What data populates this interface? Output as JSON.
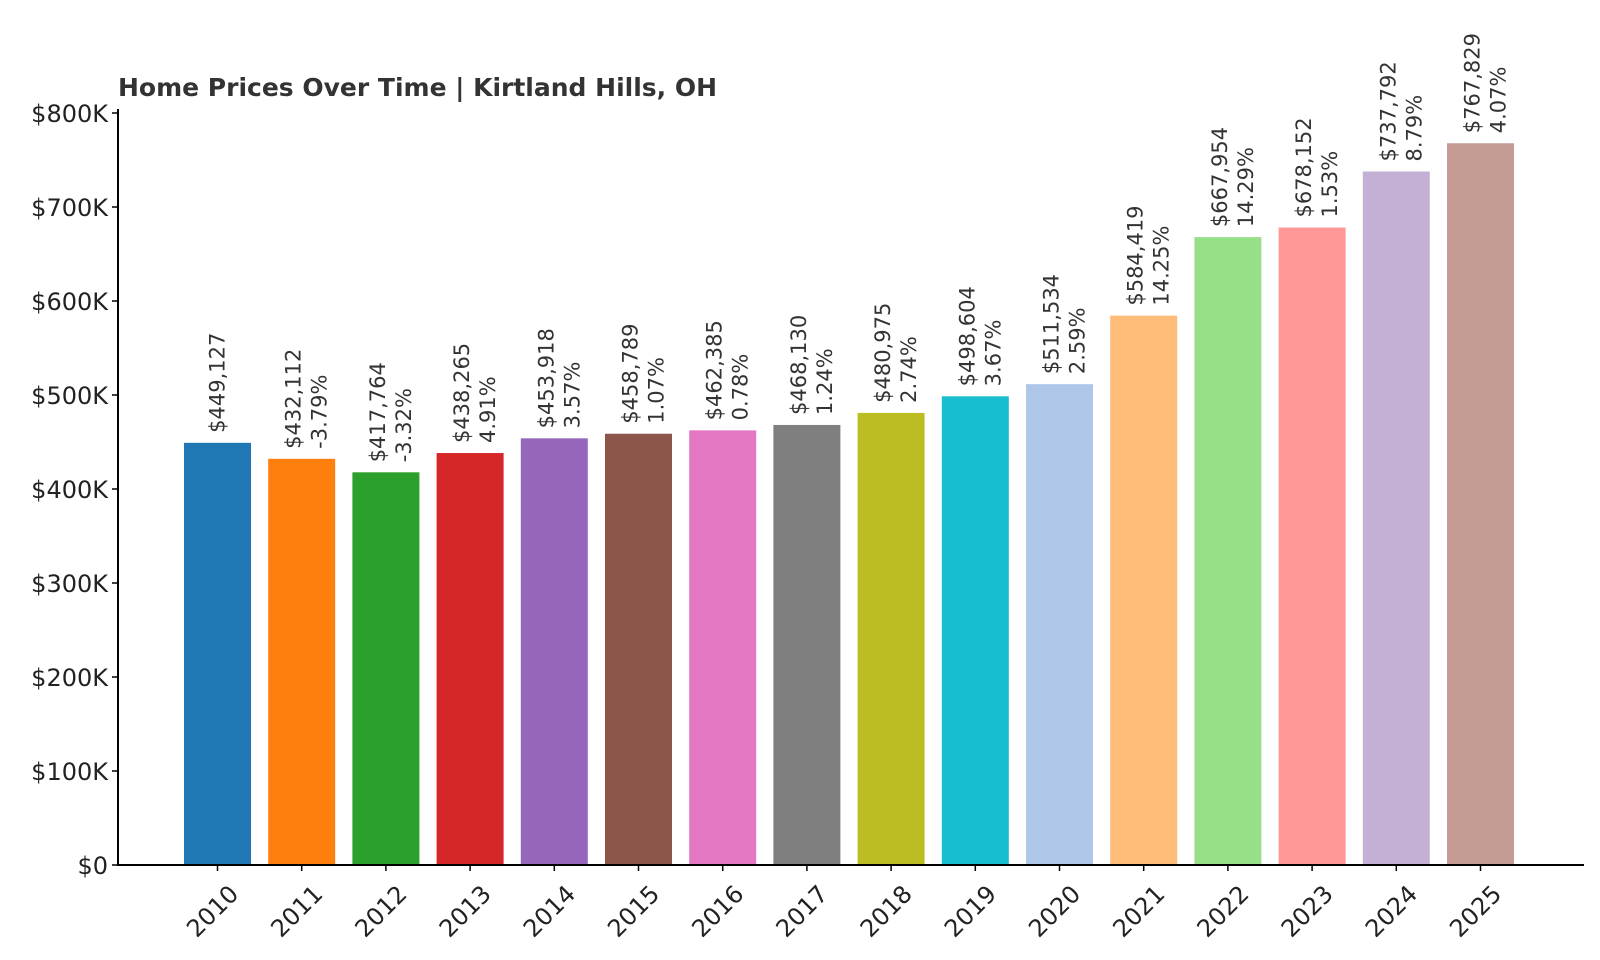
{
  "chart_data": {
    "type": "bar",
    "title": "Home Prices Over Time | Kirtland Hills, OH",
    "xlabel": "",
    "ylabel": "",
    "ylim": [
      0,
      800000
    ],
    "grid": false,
    "legend": "none",
    "yticks": [
      0,
      100000,
      200000,
      300000,
      400000,
      500000,
      600000,
      700000,
      800000
    ],
    "ytick_labels": [
      "$0",
      "$100K",
      "$200K",
      "$300K",
      "$400K",
      "$500K",
      "$600K",
      "$700K",
      "$800K"
    ],
    "categories": [
      "2010",
      "2011",
      "2012",
      "2013",
      "2014",
      "2015",
      "2016",
      "2017",
      "2018",
      "2019",
      "2020",
      "2021",
      "2022",
      "2023",
      "2024",
      "2025"
    ],
    "values": [
      449127,
      432112,
      417764,
      438265,
      453918,
      458789,
      462385,
      468130,
      480975,
      498604,
      511534,
      584419,
      667954,
      678152,
      737792,
      767829
    ],
    "value_labels": [
      "$449,127",
      "$432,112",
      "$417,764",
      "$438,265",
      "$453,918",
      "$458,789",
      "$462,385",
      "$468,130",
      "$480,975",
      "$498,604",
      "$511,534",
      "$584,419",
      "$667,954",
      "$678,152",
      "$737,792",
      "$767,829"
    ],
    "change_labels": [
      "",
      "-3.79%",
      "-3.32%",
      "4.91%",
      "3.57%",
      "1.07%",
      "0.78%",
      "1.24%",
      "2.74%",
      "3.67%",
      "2.59%",
      "14.25%",
      "14.29%",
      "1.53%",
      "8.79%",
      "4.07%"
    ],
    "colors": [
      "#1f77b4",
      "#ff7f0e",
      "#2ca02c",
      "#d62728",
      "#9467bd",
      "#8c564b",
      "#e377c2",
      "#7f7f7f",
      "#bcbd22",
      "#17becf",
      "#aec7e8",
      "#ffbb78",
      "#98df8a",
      "#ff9896",
      "#c5b0d5",
      "#c49c94"
    ]
  }
}
